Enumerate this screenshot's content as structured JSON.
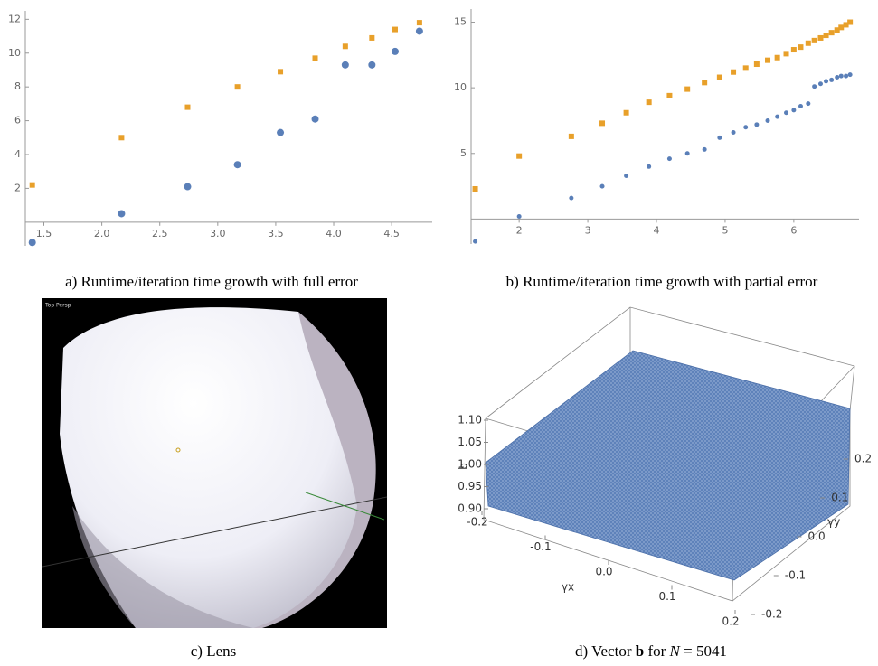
{
  "chart_data": [
    {
      "type": "scatter",
      "x": [
        1.4,
        2.17,
        2.74,
        3.17,
        3.54,
        3.84,
        4.1,
        4.33,
        4.53,
        4.74
      ],
      "series": [
        {
          "color": "#e8a02a",
          "values": [
            2.2,
            5.0,
            6.8,
            8.0,
            8.9,
            9.7,
            10.4,
            10.9,
            11.4,
            11.8
          ]
        },
        {
          "color": "#5a7fb8",
          "values": [
            -1.2,
            0.5,
            2.1,
            3.4,
            5.3,
            6.1,
            9.3,
            9.3,
            10.1,
            11.3
          ]
        }
      ],
      "xlim": [
        1.34,
        4.85
      ],
      "xticks": [
        1.5,
        {
          "value": 2,
          "label": "2.0"
        },
        2.5,
        {
          "value": 3,
          "label": "3.0"
        },
        3.5,
        {
          "value": 4,
          "label": "4.0"
        },
        4.5
      ],
      "ylim": [
        -1.4,
        12.5
      ],
      "yticks": [
        2,
        4,
        6,
        8,
        10,
        12
      ]
    },
    {
      "type": "scatter",
      "x": [
        1.36,
        2.0,
        2.76,
        3.21,
        3.56,
        3.89,
        4.19,
        4.45,
        4.7,
        4.92,
        5.12,
        5.3,
        5.46,
        5.62,
        5.76,
        5.89,
        6.0,
        6.1,
        6.21,
        6.3,
        6.39,
        6.47,
        6.55,
        6.63,
        6.69,
        6.76,
        6.82
      ],
      "series": [
        {
          "color": "#e8a02a",
          "values": [
            2.3,
            4.8,
            6.3,
            7.3,
            8.1,
            8.9,
            9.4,
            9.9,
            10.4,
            10.8,
            11.2,
            11.5,
            11.8,
            12.1,
            12.3,
            12.6,
            12.9,
            13.1,
            13.4,
            13.6,
            13.8,
            14.0,
            14.2,
            14.4,
            14.6,
            14.8,
            15.0
          ]
        },
        {
          "color": "#5a7fb8",
          "values": [
            -1.7,
            0.2,
            1.6,
            2.5,
            3.3,
            4.0,
            4.6,
            5.0,
            5.3,
            6.2,
            6.6,
            7.0,
            7.2,
            7.5,
            7.8,
            8.1,
            8.3,
            8.6,
            8.8,
            10.1,
            10.3,
            10.5,
            10.6,
            10.8,
            10.9,
            10.9,
            11.0
          ]
        }
      ],
      "xlim": [
        1.3,
        6.95
      ],
      "xticks": [
        2,
        3,
        4,
        5,
        6
      ],
      "ylim": [
        -1.9,
        16
      ],
      "yticks": [
        5,
        10,
        15
      ]
    },
    {
      "type": "surface",
      "color": "#5a7fb8",
      "xlabel": "γx",
      "ylabel": "γy",
      "zlabel": "b",
      "xlim": [
        -0.2,
        0.2
      ],
      "xticks": [
        {
          "value": -0.2,
          "label": "-0.2"
        },
        {
          "value": -0.1,
          "label": "-0.1"
        },
        {
          "value": 0,
          "label": "0.0"
        },
        {
          "value": 0.1,
          "label": "0.1"
        },
        {
          "value": 0.2,
          "label": "0.2"
        }
      ],
      "ylim": [
        -0.2,
        0.2
      ],
      "yticks": [
        {
          "value": -0.2,
          "label": "-0.2"
        },
        {
          "value": -0.1,
          "label": "-0.1"
        },
        {
          "value": 0,
          "label": "0.0"
        },
        {
          "value": 0.1,
          "label": "0.1"
        },
        {
          "value": 0.2,
          "label": "0.2"
        }
      ],
      "zlim": [
        0.9,
        1.1
      ],
      "zticks": [
        {
          "value": 0.9,
          "label": "0.90"
        },
        {
          "value": 0.95,
          "label": "0.95"
        },
        {
          "value": 1.0,
          "label": "1.00"
        },
        {
          "value": 1.05,
          "label": "1.05"
        },
        {
          "value": 1.1,
          "label": "1.10"
        }
      ]
    }
  ],
  "lens": {
    "view_label": "Top Persp"
  },
  "captions": {
    "a": "a) Runtime/iteration time growth with full error",
    "b": "b) Runtime/iteration time growth with partial error",
    "c": "c) Lens",
    "d": [
      "d) Vector ",
      "b",
      " for ",
      "N",
      " = 5041"
    ]
  }
}
